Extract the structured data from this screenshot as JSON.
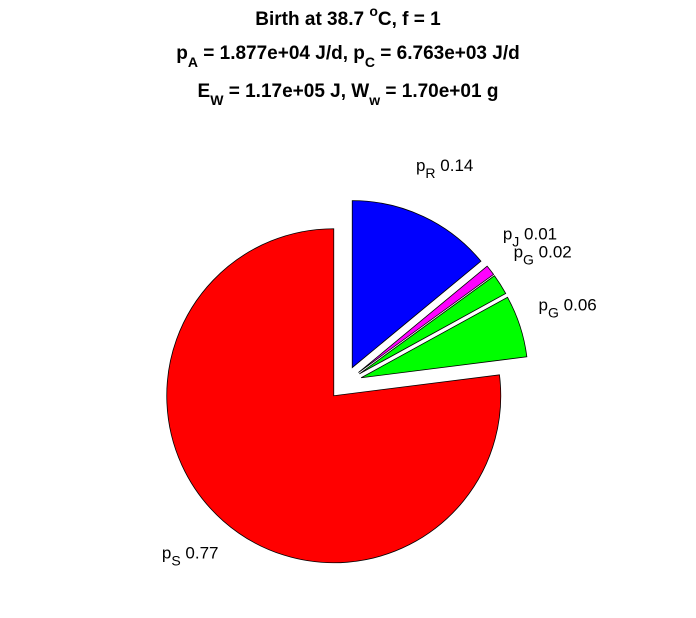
{
  "chart_data": {
    "type": "pie",
    "title": [
      [
        {
          "text": "Birth at 38.7 "
        },
        {
          "text": "o",
          "script": "super"
        },
        {
          "text": "C, f = 1"
        }
      ],
      [
        {
          "text": "p"
        },
        {
          "text": "A",
          "script": "sub"
        },
        {
          "text": " = 1.877e+04 J/d, p"
        },
        {
          "text": "C",
          "script": "sub"
        },
        {
          "text": " = 6.763e+03 J/d"
        }
      ],
      [
        {
          "text": "E"
        },
        {
          "text": "W",
          "script": "sub"
        },
        {
          "text": " = 1.17e+05 J, W"
        },
        {
          "text": "w",
          "script": "sub"
        },
        {
          "text": " = 1.70e+01 g"
        }
      ]
    ],
    "explode": true,
    "slices": [
      {
        "name": "p",
        "sub": "R",
        "value": 0.14,
        "color": "#0000ff"
      },
      {
        "name": "p",
        "sub": "J",
        "value": 0.01,
        "color": "#ff00ff"
      },
      {
        "name": "p",
        "sub": "G",
        "value": 0.02,
        "color": "#00ff00"
      },
      {
        "name": "p",
        "sub": "G",
        "value": 0.06,
        "color": "#00ff00"
      },
      {
        "name": "p",
        "sub": "S",
        "value": 0.77,
        "color": "#ff0000"
      }
    ]
  }
}
